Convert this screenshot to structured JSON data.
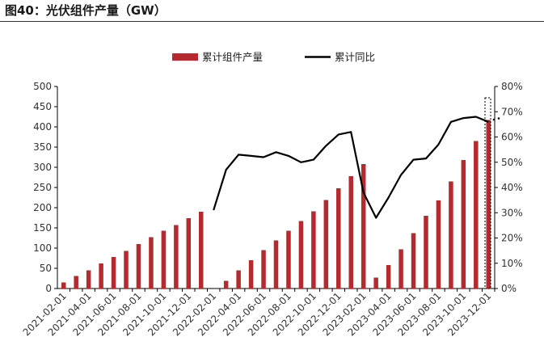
{
  "figure": {
    "title": "图40：光伏组件产量（GW）"
  },
  "colors": {
    "bar": "#b52a2e",
    "line": "#000000"
  },
  "chart_data": {
    "type": "bar",
    "categories": [
      "2021-02-01",
      "2021-03-01",
      "2021-04-01",
      "2021-05-01",
      "2021-06-01",
      "2021-07-01",
      "2021-08-01",
      "2021-09-01",
      "2021-10-01",
      "2021-11-01",
      "2021-12-01",
      "2022-01-01",
      "2022-02-01",
      "2022-03-01",
      "2022-04-01",
      "2022-05-01",
      "2022-06-01",
      "2022-07-01",
      "2022-08-01",
      "2022-09-01",
      "2022-10-01",
      "2022-11-01",
      "2022-12-01",
      "2023-01-01",
      "2023-02-01",
      "2023-03-01",
      "2023-04-01",
      "2023-05-01",
      "2023-06-01",
      "2023-07-01",
      "2023-08-01",
      "2023-09-01",
      "2023-10-01",
      "2023-11-01",
      "2023-12-01"
    ],
    "x_tick_labels": [
      "2021-02-01",
      "2021-04-01",
      "2021-06-01",
      "2021-08-01",
      "2021-10-01",
      "2021-12-01",
      "2022-02-01",
      "2022-04-01",
      "2022-06-01",
      "2022-08-01",
      "2022-10-01",
      "2022-12-01",
      "2023-02-01",
      "2023-04-01",
      "2023-06-01",
      "2023-08-01",
      "2023-10-01",
      "2023-12-01"
    ],
    "series": [
      {
        "name": "累计组件产量",
        "axis": "left",
        "kind": "bar",
        "values": [
          15,
          31,
          45,
          62,
          78,
          93,
          110,
          127,
          143,
          157,
          174,
          190,
          null,
          19,
          45,
          70,
          95,
          119,
          143,
          167,
          191,
          219,
          248,
          278,
          308,
          27,
          58,
          97,
          137,
          180,
          218,
          265,
          318,
          365,
          417
        ]
      },
      {
        "name": "累计同比",
        "axis": "right",
        "kind": "line",
        "unit": "%",
        "values": [
          null,
          null,
          null,
          null,
          null,
          null,
          null,
          null,
          null,
          null,
          null,
          null,
          31,
          47,
          53,
          52.5,
          52,
          54,
          52.5,
          50,
          51,
          56.5,
          61,
          62,
          38,
          28,
          36,
          45,
          51,
          51.5,
          57,
          66,
          67.5,
          68,
          66
        ]
      }
    ],
    "y_left": {
      "min": 0,
      "max": 500,
      "ticks": [
        "0",
        "50",
        "100",
        "150",
        "200",
        "250",
        "300",
        "350",
        "400",
        "450",
        "500"
      ]
    },
    "y_right": {
      "min": 0,
      "max": 80,
      "ticks": [
        "0%",
        "10%",
        "20%",
        "30%",
        "40%",
        "50%",
        "60%",
        "70%",
        "80%"
      ]
    },
    "legend_position": "top-center",
    "grid": false
  }
}
